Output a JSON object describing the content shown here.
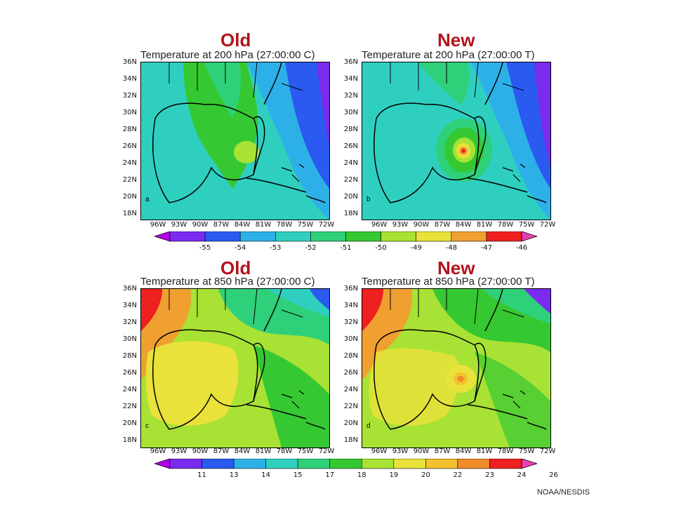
{
  "titles": {
    "old_top": "Old",
    "new_top": "New",
    "old_bottom": "Old",
    "new_bottom": "New"
  },
  "subtitles": {
    "old_top": "Temperature at 200 hPa (27:00:00 C)",
    "new_top": "Temperature at 200 hPa (27:00:00 T)",
    "old_bottom": "Temperature at 850 hPa (27:00:00 C)",
    "new_bottom": "Temperature at 850 hPa (27:00:00 T)"
  },
  "axes": {
    "lat_ticks": [
      "36N",
      "34N",
      "32N",
      "30N",
      "28N",
      "26N",
      "24N",
      "22N",
      "20N",
      "18N"
    ],
    "lon_ticks": [
      "96W",
      "93W",
      "90W",
      "87W",
      "84W",
      "81W",
      "78W",
      "75W",
      "72W"
    ]
  },
  "panel_corner_marks": {
    "old_top": "a",
    "new_top": "b",
    "old_bottom": "c",
    "new_bottom": "d"
  },
  "colorbars": {
    "top": {
      "labels": [
        "-55",
        "-54",
        "-53",
        "-52",
        "-51",
        "-50",
        "-49",
        "-48",
        "-47",
        "-46"
      ],
      "colors": [
        "#b400e6",
        "#7a2bf0",
        "#2a5af0",
        "#2db0e8",
        "#2fcfc0",
        "#2fd07a",
        "#36c832",
        "#a8e234",
        "#e8e23a",
        "#f0a030",
        "#ee2020",
        "#e840b0"
      ]
    },
    "bottom": {
      "labels": [
        "11",
        "13",
        "14",
        "15",
        "17",
        "18",
        "19",
        "20",
        "22",
        "23",
        "24",
        "26"
      ],
      "colors": [
        "#b400e6",
        "#7a2bf0",
        "#2a5af0",
        "#2db0e8",
        "#2fcfc0",
        "#2fd07a",
        "#36c832",
        "#a8e234",
        "#e8e23a",
        "#f3c12f",
        "#f08a2a",
        "#ee2020",
        "#e840b0"
      ]
    }
  },
  "credit": "NOAA/NESDIS"
}
